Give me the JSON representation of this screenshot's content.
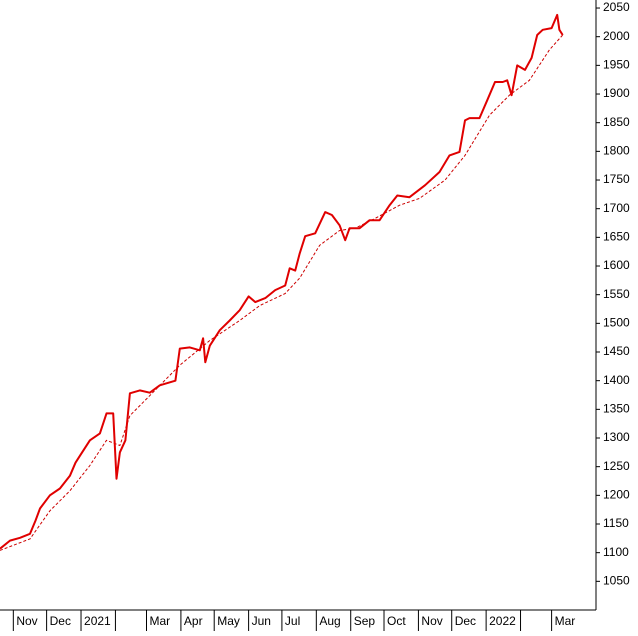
{
  "chart_data": {
    "type": "line",
    "xlim": [
      -12,
      525
    ],
    "ylim": [
      1000,
      2064
    ],
    "xticks": [
      {
        "value": 0,
        "label": "Nov"
      },
      {
        "value": 30,
        "label": "Dec"
      },
      {
        "value": 61,
        "label": "2021"
      },
      {
        "value": 92,
        "label": null
      },
      {
        "value": 120,
        "label": "Mar"
      },
      {
        "value": 151,
        "label": "Apr"
      },
      {
        "value": 181,
        "label": "May"
      },
      {
        "value": 212,
        "label": "Jun"
      },
      {
        "value": 242,
        "label": "Jul"
      },
      {
        "value": 273,
        "label": "Aug"
      },
      {
        "value": 304,
        "label": "Sep"
      },
      {
        "value": 334,
        "label": "Oct"
      },
      {
        "value": 365,
        "label": "Nov"
      },
      {
        "value": 395,
        "label": "Dec"
      },
      {
        "value": 426,
        "label": "2022"
      },
      {
        "value": 457,
        "label": null
      },
      {
        "value": 485,
        "label": "Mar"
      }
    ],
    "yticks": [
      1050,
      1100,
      1150,
      1200,
      1250,
      1300,
      1350,
      1400,
      1450,
      1500,
      1550,
      1600,
      1650,
      1700,
      1750,
      1800,
      1850,
      1900,
      1950,
      2000,
      2050
    ],
    "series": [
      {
        "color": "#e00000",
        "dashed": false,
        "x": [
          -12,
          -3,
          6,
          15,
          20,
          24,
          33,
          42,
          51,
          56,
          60,
          69,
          78,
          84,
          90,
          93,
          96,
          101,
          105,
          114,
          123,
          132,
          146,
          150,
          159,
          168,
          171,
          173,
          177,
          186,
          195,
          204,
          212,
          218,
          227,
          236,
          245,
          249,
          254,
          258,
          263,
          272,
          281,
          287,
          294,
          299,
          303,
          312,
          321,
          330,
          339,
          346,
          357,
          371,
          384,
          393,
          402,
          407,
          411,
          420,
          427,
          434,
          441,
          445,
          449,
          454,
          461,
          467,
          472,
          477,
          485,
          490,
          492,
          495
        ],
        "values": [
          1107,
          1121,
          1126,
          1133,
          1156,
          1177,
          1200,
          1212,
          1234,
          1257,
          1269,
          1296,
          1308,
          1343,
          1343,
          1229,
          1275,
          1296,
          1378,
          1383,
          1379,
          1392,
          1400,
          1456,
          1458,
          1453,
          1474,
          1432,
          1461,
          1488,
          1505,
          1523,
          1547,
          1537,
          1544,
          1558,
          1566,
          1596,
          1592,
          1622,
          1652,
          1657,
          1694,
          1689,
          1671,
          1645,
          1666,
          1666,
          1680,
          1680,
          1706,
          1723,
          1720,
          1741,
          1764,
          1793,
          1799,
          1854,
          1858,
          1858,
          1889,
          1921,
          1921,
          1924,
          1898,
          1950,
          1942,
          1963,
          2003,
          2012,
          2015,
          2038,
          2012,
          2003
        ]
      },
      {
        "color": "#cc0000",
        "dashed": true,
        "x": [
          -12,
          15,
          33,
          51,
          69,
          84,
          96,
          105,
          123,
          150,
          177,
          204,
          222,
          245,
          258,
          276,
          294,
          308,
          326,
          348,
          366,
          389,
          407,
          429,
          447,
          465,
          483,
          495
        ],
        "values": [
          1104,
          1124,
          1173,
          1208,
          1252,
          1296,
          1287,
          1339,
          1374,
          1427,
          1470,
          1505,
          1531,
          1552,
          1579,
          1636,
          1662,
          1666,
          1683,
          1706,
          1718,
          1750,
          1793,
          1863,
          1898,
          1924,
          1977,
          2003
        ]
      }
    ]
  }
}
